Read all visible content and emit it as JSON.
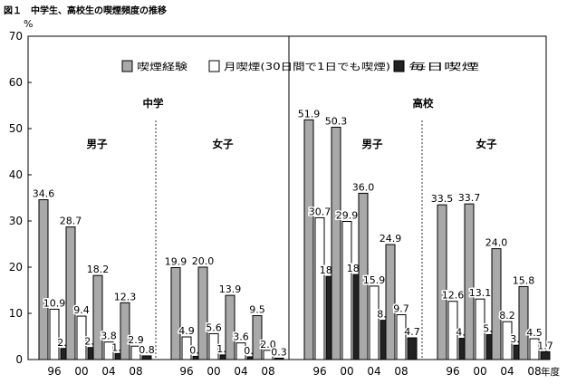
{
  "figure_title": "図１　中学生、高校生の喫煙頻度の推移",
  "chart_data": {
    "type": "bar",
    "unit_label": "%",
    "x_axis_label": "年度",
    "ylim": [
      0,
      70
    ],
    "y_ticks": [
      0,
      10,
      20,
      30,
      40,
      50,
      60,
      70
    ],
    "grid": false,
    "legend_position": "top-right",
    "legend": [
      {
        "name": "喫煙経験",
        "color": "#a9a9a9"
      },
      {
        "name": "月喫煙(30日間で1日でも喫煙)",
        "color": "#ffffff"
      },
      {
        "name": "毎日喫煙",
        "color": "#222222"
      }
    ],
    "panels": [
      {
        "school": "中学",
        "groups": [
          {
            "sex": "男子",
            "years": [
              "96",
              "00",
              "04",
              "08"
            ],
            "series": [
              {
                "name": "喫煙経験",
                "values": [
                  34.6,
                  28.7,
                  18.2,
                  12.3
                ]
              },
              {
                "name": "月喫煙(30日間で1日でも喫煙)",
                "values": [
                  10.9,
                  9.4,
                  3.8,
                  2.9
                ]
              },
              {
                "name": "毎日喫煙",
                "values": [
                  2.4,
                  2.6,
                  1.3,
                  0.8
                ]
              }
            ]
          },
          {
            "sex": "女子",
            "years": [
              "96",
              "00",
              "04",
              "08"
            ],
            "series": [
              {
                "name": "喫煙経験",
                "values": [
                  19.9,
                  20.0,
                  13.9,
                  9.5
                ]
              },
              {
                "name": "月喫煙(30日間で1日でも喫煙)",
                "values": [
                  4.9,
                  5.6,
                  3.6,
                  2.0
                ]
              },
              {
                "name": "毎日喫煙",
                "values": [
                  0.7,
                  1.0,
                  0.6,
                  0.3
                ]
              }
            ]
          }
        ]
      },
      {
        "school": "高校",
        "groups": [
          {
            "sex": "男子",
            "years": [
              "96",
              "00",
              "04",
              "08"
            ],
            "series": [
              {
                "name": "喫煙経験",
                "values": [
                  51.9,
                  50.3,
                  36.0,
                  24.9
                ]
              },
              {
                "name": "月喫煙(30日間で1日でも喫煙)",
                "values": [
                  30.7,
                  29.9,
                  15.9,
                  9.7
                ]
              },
              {
                "name": "毎日喫煙",
                "values": [
                  18.0,
                  18.4,
                  8.5,
                  4.7
                ]
              }
            ]
          },
          {
            "sex": "女子",
            "years": [
              "96",
              "00",
              "04",
              "08"
            ],
            "series": [
              {
                "name": "喫煙経験",
                "values": [
                  33.5,
                  33.7,
                  24.0,
                  15.8
                ]
              },
              {
                "name": "月喫煙(30日間で1日でも喫煙)",
                "values": [
                  12.6,
                  13.1,
                  8.2,
                  4.5
                ]
              },
              {
                "name": "毎日喫煙",
                "values": [
                  4.6,
                  5.4,
                  3.1,
                  1.7
                ]
              }
            ]
          }
        ]
      }
    ]
  }
}
